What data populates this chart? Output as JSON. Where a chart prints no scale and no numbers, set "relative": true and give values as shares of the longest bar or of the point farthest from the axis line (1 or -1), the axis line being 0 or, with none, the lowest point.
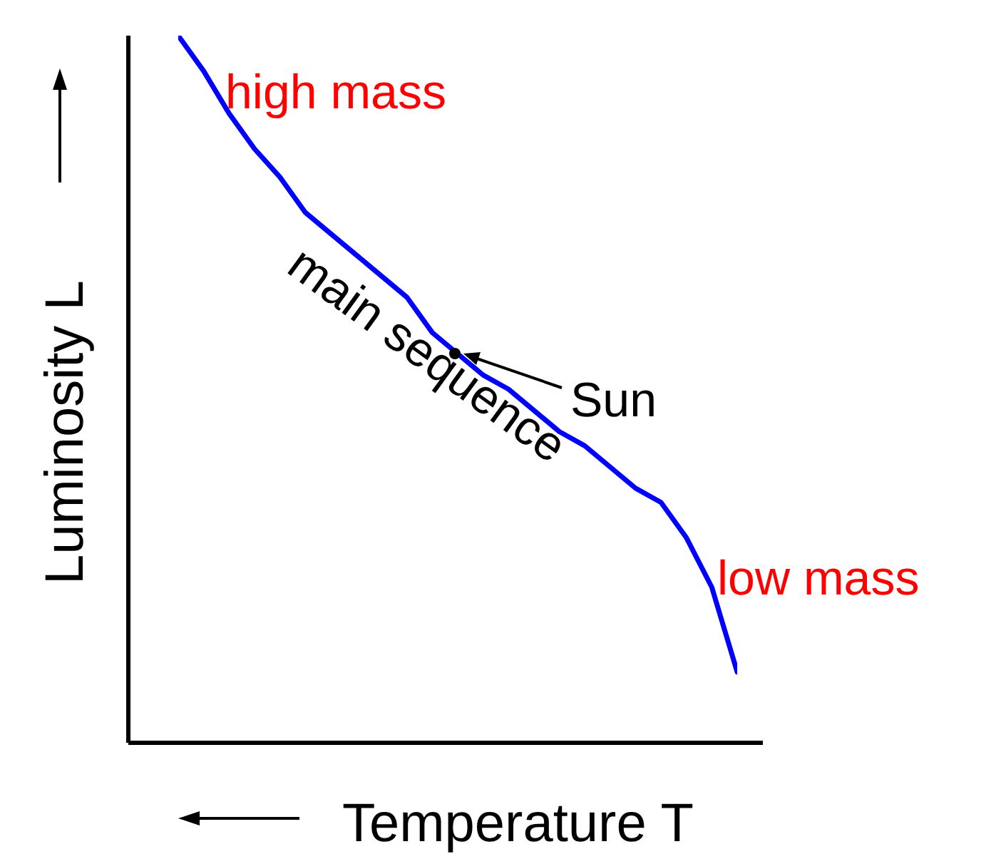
{
  "chart_data": {
    "type": "line",
    "relative": true,
    "xlabel": "Temperature T",
    "ylabel": "Luminosity L",
    "categories": [
      null,
      null,
      null,
      null,
      null,
      null,
      null,
      null,
      null,
      null,
      null,
      null,
      null,
      null,
      null,
      null,
      null,
      null,
      null,
      null,
      null,
      null,
      null
    ],
    "series": [
      {
        "color": "#0000ff",
        "values": [
          1.0,
          0.95,
          0.89,
          0.84,
          0.8,
          0.75,
          0.72,
          0.69,
          0.66,
          0.63,
          0.58,
          0.55,
          0.52,
          0.5,
          0.47,
          0.44,
          0.42,
          0.39,
          0.36,
          0.34,
          0.29,
          0.22,
          0.1
        ]
      }
    ],
    "annotations": [
      "high mass",
      "main sequence",
      "Sun",
      "low mass"
    ]
  }
}
